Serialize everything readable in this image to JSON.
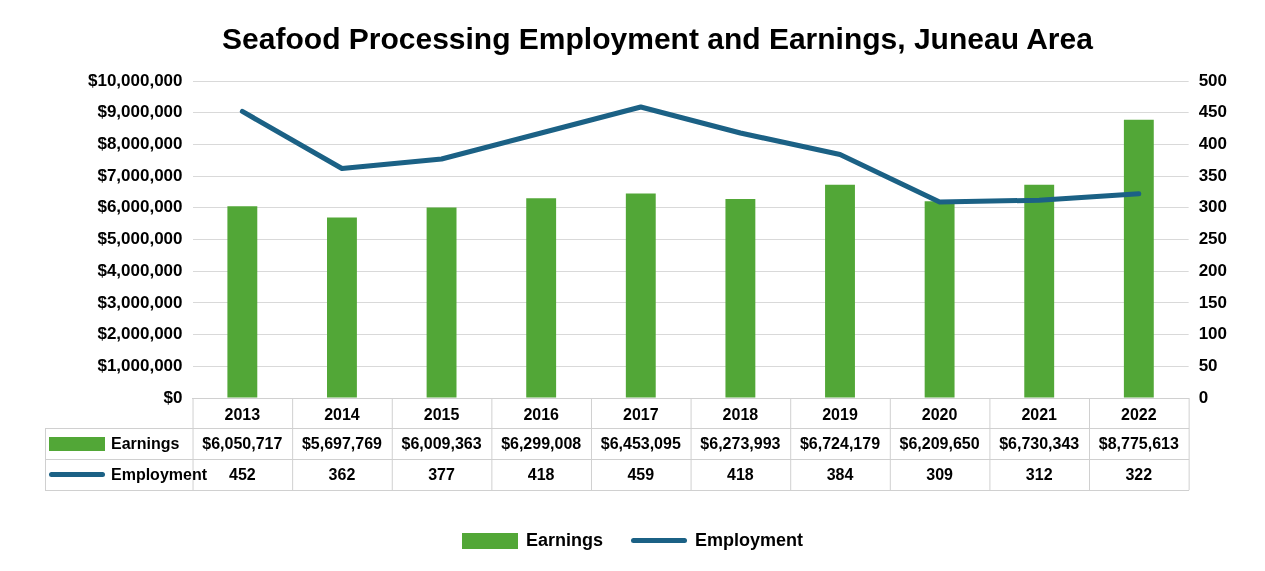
{
  "chart_data": {
    "type": "bar",
    "title": "Seafood Processing Employment and Earnings, Juneau Area",
    "categories": [
      "2013",
      "2014",
      "2015",
      "2016",
      "2017",
      "2018",
      "2019",
      "2020",
      "2021",
      "2022"
    ],
    "series": [
      {
        "name": "Earnings",
        "color": "#52a737",
        "values": [
          6050717,
          5697769,
          6009363,
          6299008,
          6453095,
          6273993,
          6724179,
          6209650,
          6730343,
          8775613
        ],
        "value_labels": [
          "$6,050,717",
          "$5,697,769",
          "$6,009,363",
          "$6,299,008",
          "$6,453,095",
          "$6,273,993",
          "$6,724,179",
          "$6,209,650",
          "$6,730,343",
          "$8,775,613"
        ]
      },
      {
        "name": "Employment",
        "type": "line",
        "axis": "y2",
        "color": "#1b6185",
        "values": [
          452,
          362,
          377,
          418,
          459,
          418,
          384,
          309,
          312,
          322
        ],
        "value_labels": [
          "452",
          "362",
          "377",
          "418",
          "459",
          "418",
          "384",
          "309",
          "312",
          "322"
        ]
      }
    ],
    "ylim": [
      0,
      10000000
    ],
    "yticks": [
      {
        "value": 0,
        "label": "$0"
      },
      {
        "value": 1000000,
        "label": "$1,000,000"
      },
      {
        "value": 2000000,
        "label": "$2,000,000"
      },
      {
        "value": 3000000,
        "label": "$3,000,000"
      },
      {
        "value": 4000000,
        "label": "$4,000,000"
      },
      {
        "value": 5000000,
        "label": "$5,000,000"
      },
      {
        "value": 6000000,
        "label": "$6,000,000"
      },
      {
        "value": 7000000,
        "label": "$7,000,000"
      },
      {
        "value": 8000000,
        "label": "$8,000,000"
      },
      {
        "value": 9000000,
        "label": "$9,000,000"
      },
      {
        "value": 10000000,
        "label": "$10,000,000"
      }
    ],
    "y2lim": [
      0,
      500
    ],
    "y2ticks": [
      0,
      50,
      100,
      150,
      200,
      250,
      300,
      350,
      400,
      450,
      500
    ],
    "grid": "y",
    "legend": "bottom",
    "marker": "none"
  }
}
